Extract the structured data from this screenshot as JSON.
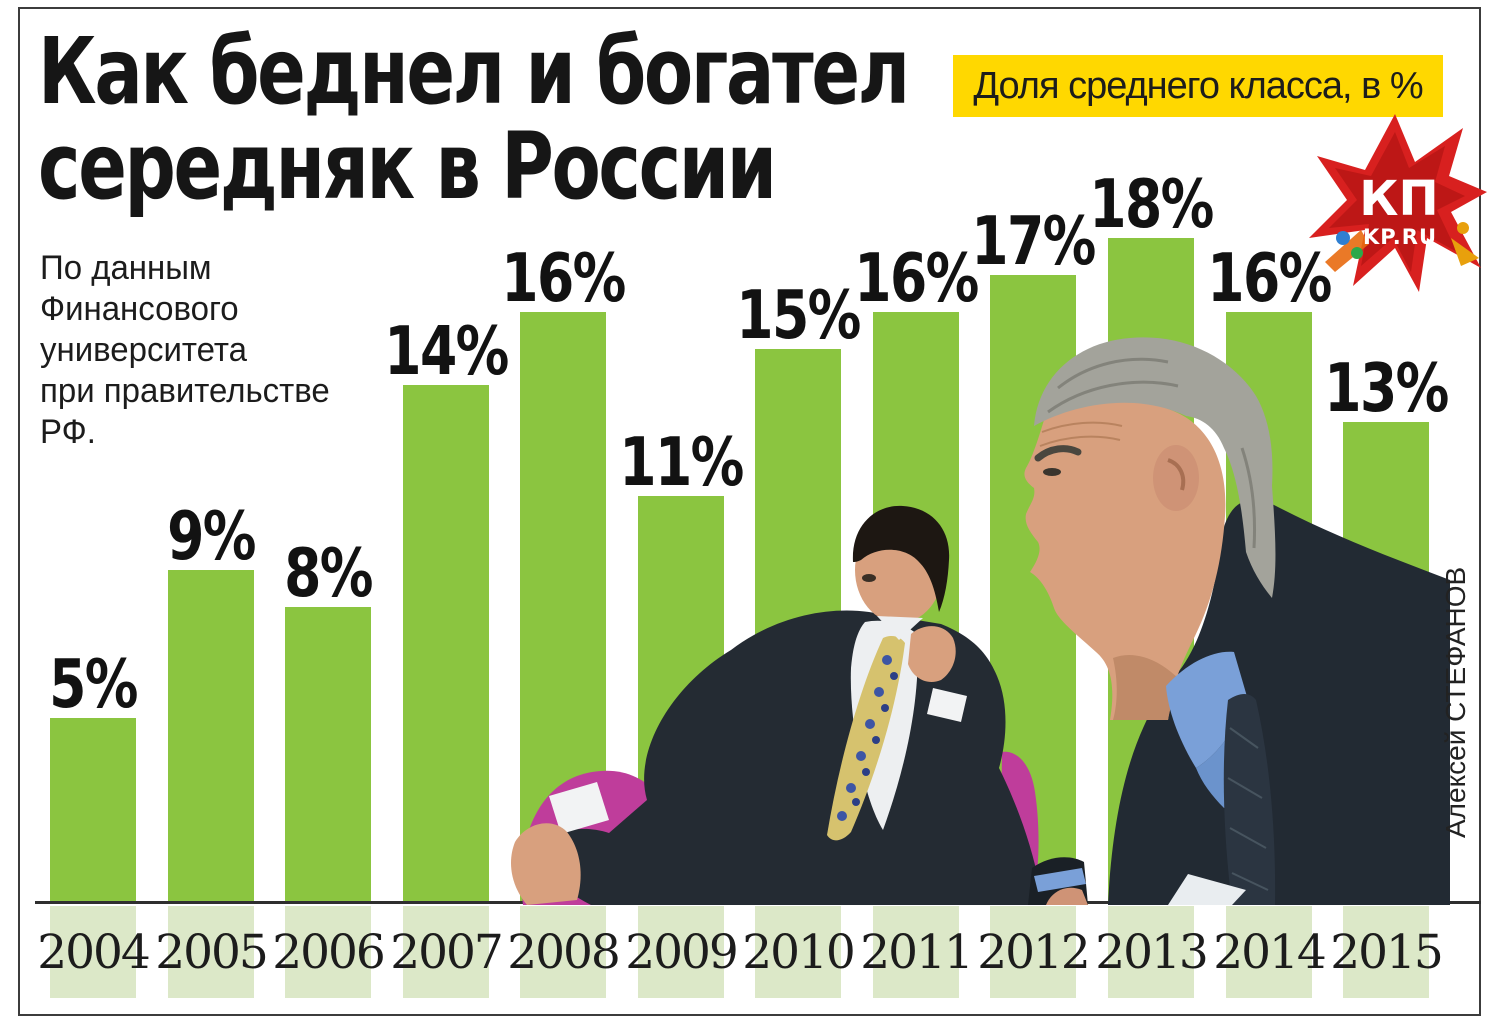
{
  "title": {
    "line1": "Как беднел и богател",
    "line2": "середняк  в России"
  },
  "banner": {
    "label": "Доля среднего класса, в %",
    "bg_color": "#FFD800",
    "text_color": "#1d1d1b"
  },
  "source_note": "По данным\nФинансового\nуниверситета\nпри правительстве\nРФ.",
  "logo": {
    "main": "КП",
    "sub": "KP.RU",
    "star_color": "#D8201F"
  },
  "photo_credit": "Алексей СТЕФАНОВ",
  "colors": {
    "bar": "#8BC540",
    "bar_pale": "#DCE8C8",
    "label": "#121212",
    "baseline": "#2f2f2f",
    "border": "#3c3c3c"
  },
  "chart_data": {
    "type": "bar",
    "title": "Доля среднего класса, в %",
    "categories": [
      "2004",
      "2005",
      "2006",
      "2007",
      "2008",
      "2009",
      "2010",
      "2011",
      "2012",
      "2013",
      "2014",
      "2015"
    ],
    "values": [
      5,
      9,
      8,
      14,
      16,
      11,
      15,
      16,
      17,
      18,
      16,
      13
    ],
    "unit": "%",
    "value_labels": [
      "5%",
      "9%",
      "8%",
      "14%",
      "16%",
      "11%",
      "15%",
      "16%",
      "17%",
      "18%",
      "16%",
      "13%"
    ],
    "ylim": [
      0,
      20
    ],
    "grid": false,
    "legend": "none",
    "source": "По данным Финансового университета при правительстве РФ."
  }
}
